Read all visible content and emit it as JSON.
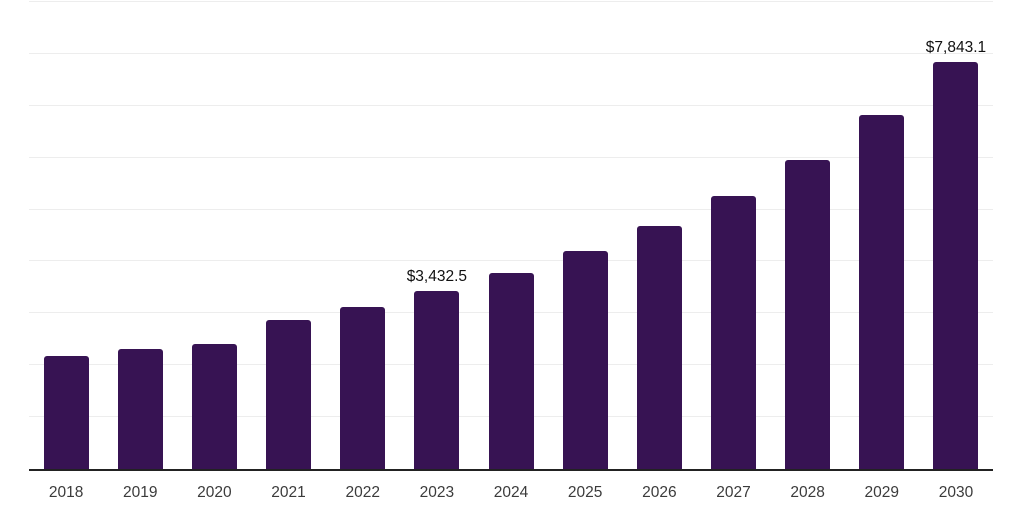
{
  "chart_data": {
    "type": "bar",
    "title": "",
    "xlabel": "",
    "ylabel": "",
    "categories": [
      "2018",
      "2019",
      "2020",
      "2021",
      "2022",
      "2023",
      "2024",
      "2025",
      "2026",
      "2027",
      "2028",
      "2029",
      "2030"
    ],
    "values": [
      2170,
      2320,
      2405,
      2875,
      3125,
      3432.5,
      3785,
      4200,
      4680,
      5255,
      5950,
      6820,
      7843.1
    ],
    "annotations": [
      {
        "index": 5,
        "category": "2023",
        "text": "$3,432.5"
      },
      {
        "index": 12,
        "category": "2030",
        "text": "$7,843.1"
      }
    ],
    "ylim": [
      0,
      9000
    ],
    "gridline_step": 1000,
    "grid": "horizontal",
    "legend_position": "none",
    "colors": {
      "bar": "#371353",
      "axis_line": "#222222",
      "gridline": "#ededed",
      "data_label": "#111111",
      "tick_label": "#3b3b3b",
      "background": "#ffffff"
    }
  }
}
